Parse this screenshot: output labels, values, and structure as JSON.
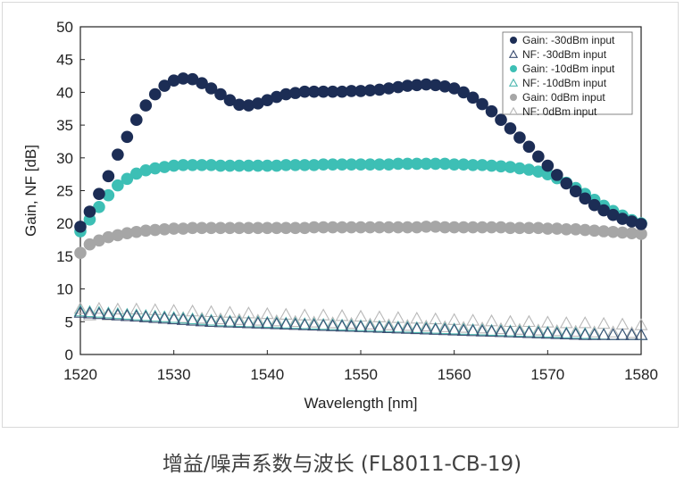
{
  "caption": "增益/噪声系数与波长 (FL8011-CB-19)",
  "colors": {
    "navy": "#1c2d55",
    "teal": "#3dbfb5",
    "gray": "#a6a6a6",
    "nf_navy": "#3c4e72",
    "nf_teal": "#4fb8b0",
    "nf_gray": "#b8b8b8"
  },
  "chart_data": {
    "type": "scatter",
    "title": "",
    "xlabel": "Wavelength [nm]",
    "ylabel": "Gain, NF [dB]",
    "xlim": [
      1520,
      1580
    ],
    "ylim": [
      0,
      50
    ],
    "xticks": [
      1520,
      1530,
      1540,
      1550,
      1560,
      1570,
      1580
    ],
    "yticks": [
      0,
      5,
      10,
      15,
      20,
      25,
      30,
      35,
      40,
      45,
      50
    ],
    "grid": false,
    "legend_position": "top-right",
    "x": [
      1520,
      1521,
      1522,
      1523,
      1524,
      1525,
      1526,
      1527,
      1528,
      1529,
      1530,
      1531,
      1532,
      1533,
      1534,
      1535,
      1536,
      1537,
      1538,
      1539,
      1540,
      1541,
      1542,
      1543,
      1544,
      1545,
      1546,
      1547,
      1548,
      1549,
      1550,
      1551,
      1552,
      1553,
      1554,
      1555,
      1556,
      1557,
      1558,
      1559,
      1560,
      1561,
      1562,
      1563,
      1564,
      1565,
      1566,
      1567,
      1568,
      1569,
      1570,
      1571,
      1572,
      1573,
      1574,
      1575,
      1576,
      1577,
      1578,
      1579,
      1580
    ],
    "series": [
      {
        "name": "Gain: -30dBm input",
        "marker": "circle",
        "color": "#1c2d55",
        "values": [
          19.5,
          21.8,
          24.5,
          27.2,
          30.5,
          33.2,
          35.8,
          38.0,
          39.7,
          41.0,
          41.8,
          42.1,
          42.0,
          41.4,
          40.6,
          39.7,
          38.8,
          38.1,
          38.0,
          38.3,
          38.8,
          39.3,
          39.7,
          39.9,
          40.1,
          40.1,
          40.1,
          40.1,
          40.1,
          40.2,
          40.2,
          40.3,
          40.4,
          40.6,
          40.8,
          41.0,
          41.1,
          41.2,
          41.1,
          40.9,
          40.6,
          40.0,
          39.2,
          38.2,
          37.1,
          35.8,
          34.5,
          33.1,
          31.7,
          30.2,
          28.8,
          27.4,
          26.1,
          24.9,
          23.8,
          22.8,
          22.0,
          21.3,
          20.7,
          20.3,
          19.9
        ]
      },
      {
        "name": "NF: -30dBm input",
        "marker": "triangle",
        "color": "#3c4e72",
        "values": [
          6.4,
          6.3,
          6.2,
          6.1,
          6.0,
          5.9,
          5.8,
          5.7,
          5.6,
          5.5,
          5.4,
          5.3,
          5.2,
          5.1,
          5.0,
          4.95,
          4.9,
          4.85,
          4.8,
          4.75,
          4.7,
          4.65,
          4.6,
          4.55,
          4.5,
          4.45,
          4.4,
          4.35,
          4.3,
          4.25,
          4.2,
          4.15,
          4.1,
          4.05,
          4.0,
          3.95,
          3.9,
          3.85,
          3.8,
          3.75,
          3.7,
          3.65,
          3.6,
          3.55,
          3.5,
          3.45,
          3.4,
          3.35,
          3.3,
          3.25,
          3.2,
          3.15,
          3.1,
          3.05,
          3.0,
          3.0,
          3.0,
          3.0,
          3.0,
          3.0,
          3.0
        ]
      },
      {
        "name": "Gain: -10dBm input",
        "marker": "circle",
        "color": "#3dbfb5",
        "values": [
          18.8,
          20.6,
          22.5,
          24.3,
          25.8,
          26.8,
          27.6,
          28.1,
          28.4,
          28.6,
          28.8,
          28.9,
          28.9,
          28.9,
          28.9,
          28.8,
          28.8,
          28.8,
          28.8,
          28.8,
          28.8,
          28.8,
          28.9,
          28.9,
          28.9,
          28.9,
          29.0,
          29.0,
          29.0,
          29.0,
          29.0,
          29.0,
          29.0,
          29.0,
          29.1,
          29.1,
          29.1,
          29.1,
          29.1,
          29.1,
          29.0,
          29.0,
          28.9,
          28.9,
          28.8,
          28.7,
          28.6,
          28.4,
          28.2,
          27.9,
          27.5,
          26.9,
          26.2,
          25.4,
          24.5,
          23.6,
          22.7,
          21.9,
          21.2,
          20.5,
          20.0
        ]
      },
      {
        "name": "NF: -10dBm input",
        "marker": "triangle",
        "color": "#4fb8b0",
        "values": [
          6.6,
          6.5,
          6.4,
          6.3,
          6.2,
          6.1,
          6.0,
          5.9,
          5.8,
          5.7,
          5.6,
          5.5,
          5.4,
          5.3,
          5.2,
          5.1,
          5.05,
          5.0,
          4.95,
          4.9,
          4.85,
          4.8,
          4.75,
          4.7,
          4.65,
          4.6,
          4.55,
          4.5,
          4.45,
          4.4,
          4.35,
          4.3,
          4.25,
          4.2,
          4.15,
          4.1,
          4.05,
          4.0,
          3.95,
          3.9,
          3.85,
          3.8,
          3.75,
          3.7,
          3.65,
          3.6,
          3.55,
          3.5,
          3.45,
          3.4,
          3.35,
          3.3,
          3.25,
          3.2,
          3.15,
          3.1,
          3.05,
          3.0,
          3.0,
          3.0,
          3.0
        ]
      },
      {
        "name": "Gain: 0dBm input",
        "marker": "circle",
        "color": "#a6a6a6",
        "values": [
          15.5,
          16.8,
          17.4,
          17.9,
          18.2,
          18.5,
          18.7,
          18.9,
          19.0,
          19.1,
          19.2,
          19.2,
          19.3,
          19.3,
          19.3,
          19.3,
          19.3,
          19.3,
          19.3,
          19.3,
          19.3,
          19.3,
          19.3,
          19.3,
          19.3,
          19.4,
          19.4,
          19.4,
          19.4,
          19.4,
          19.4,
          19.4,
          19.4,
          19.4,
          19.4,
          19.4,
          19.4,
          19.5,
          19.5,
          19.4,
          19.4,
          19.4,
          19.4,
          19.4,
          19.4,
          19.4,
          19.3,
          19.3,
          19.3,
          19.3,
          19.2,
          19.2,
          19.1,
          19.1,
          19.0,
          18.9,
          18.8,
          18.7,
          18.6,
          18.5,
          18.4
        ]
      },
      {
        "name": "NF: 0dBm input",
        "marker": "triangle",
        "color": "#b8b8b8",
        "values": [
          7.0,
          6.0,
          7.0,
          6.0,
          6.9,
          5.9,
          6.9,
          5.8,
          6.8,
          5.7,
          6.7,
          5.6,
          6.6,
          5.5,
          6.5,
          5.4,
          6.4,
          5.3,
          6.3,
          5.2,
          6.2,
          5.1,
          6.1,
          5.0,
          6.0,
          4.9,
          6.0,
          4.8,
          5.9,
          4.7,
          5.8,
          4.6,
          5.7,
          4.5,
          5.6,
          4.4,
          5.5,
          4.3,
          5.4,
          4.2,
          5.3,
          4.1,
          5.2,
          4.0,
          5.1,
          3.9,
          5.0,
          3.8,
          5.0,
          3.7,
          4.9,
          3.6,
          4.8,
          3.5,
          4.8,
          3.4,
          4.7,
          3.4,
          4.6,
          3.3,
          4.5
        ]
      }
    ]
  }
}
